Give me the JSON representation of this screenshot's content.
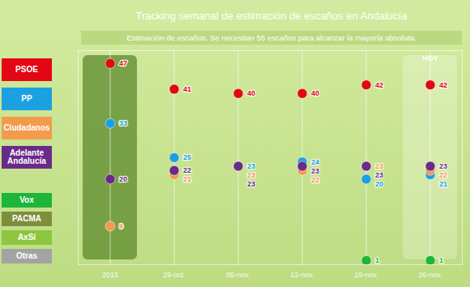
{
  "chart_data": {
    "type": "scatter",
    "title": "Tracking semanal de estimación de escaños en Andalucía",
    "subtitle": "Estimación de escaños. Se necesitan 55 escaños para alcanzar la mayoría absoluta.",
    "categories": [
      "2015",
      "29-oct.",
      "05-nov.",
      "12-nov.",
      "19-nov.",
      "26-nov."
    ],
    "series": [
      {
        "name": "PSOE",
        "color": "#e30613",
        "values": [
          47,
          41,
          40,
          40,
          42,
          42
        ]
      },
      {
        "name": "PP",
        "color": "#1ba1e2",
        "values": [
          33,
          25,
          23,
          24,
          20,
          21
        ]
      },
      {
        "name": "Ciudadanos",
        "color": "#f39a4c",
        "values": [
          9,
          21,
          23,
          22,
          23,
          22
        ]
      },
      {
        "name": "Adelante Andalucía",
        "color": "#6a2a8a",
        "values": [
          20,
          22,
          23,
          23,
          23,
          23
        ]
      },
      {
        "name": "Vox",
        "color": "#1eb53a",
        "values": [
          null,
          null,
          null,
          null,
          1,
          1
        ]
      },
      {
        "name": "PACMA",
        "color": "#7d8f3c",
        "values": [
          null,
          null,
          null,
          null,
          null,
          null
        ]
      },
      {
        "name": "AxSí",
        "color": "#8dc63f",
        "values": [
          null,
          null,
          null,
          null,
          null,
          null
        ]
      },
      {
        "name": "Otras",
        "color": "#a3a3a3",
        "values": [
          null,
          null,
          null,
          null,
          null,
          null
        ]
      }
    ],
    "ylim": [
      0,
      50
    ],
    "tick_labels": "x",
    "grid": true,
    "data_labels": true,
    "legend": "left",
    "annotations": [
      "HOY"
    ]
  }
}
